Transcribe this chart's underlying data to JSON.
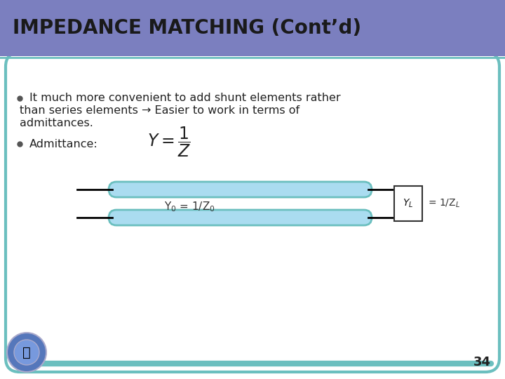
{
  "title": "IMPEDANCE MATCHING (Cont’d)",
  "title_bg_color": "#7B7FBF",
  "title_text_color": "#1a1a1a",
  "slide_bg_color": "#FFFFFF",
  "border_color": "#6BBFBF",
  "bullet1": "It much more convenient to add shunt elements rather than series elements → Easier to work in terms of admittances.",
  "bullet2": "Admittance:",
  "formula": "Y = 1/Z",
  "diagram_line_color": "#000000",
  "diagram_tube_fill": "#AADCF0",
  "diagram_tube_edge": "#6BBFBF",
  "diagram_box_color": "#FFFFFF",
  "diagram_box_edge": "#333333",
  "label_Y0": "Y$_0$ = 1/Z$_0$",
  "label_YL_box": "Y$_L$",
  "label_YL_eq": "= 1/Z$_L$",
  "page_number": "34",
  "accent_line_color": "#6BBFBF"
}
